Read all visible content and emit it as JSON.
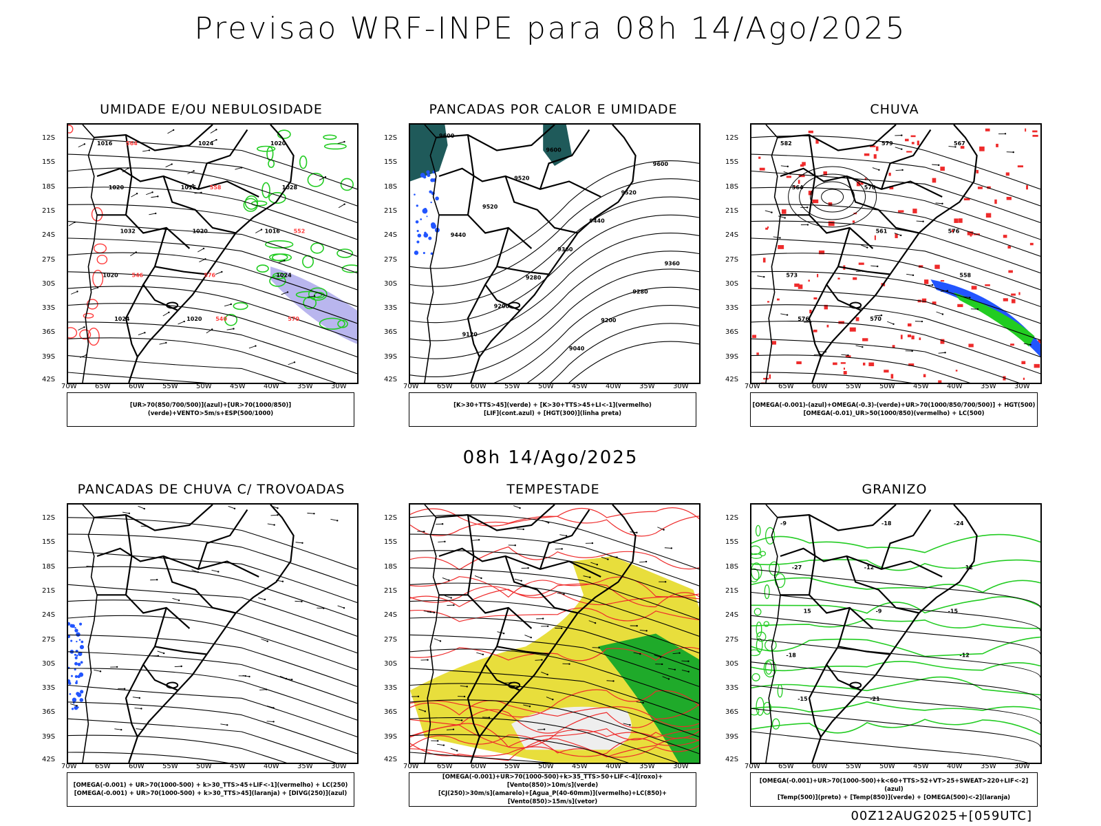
{
  "title": "Previsao WRF-INPE  para 08h 14/Ago/2025",
  "mid_title": "08h 14/Ago/2025",
  "footer": "00Z12AUG2025+[059UTC]",
  "lat_ticks": [
    "12S",
    "15S",
    "18S",
    "21S",
    "24S",
    "27S",
    "30S",
    "33S",
    "36S",
    "39S",
    "42S"
  ],
  "lon_ticks": [
    "70W",
    "65W",
    "60W",
    "55W",
    "50W",
    "45W",
    "40W",
    "35W",
    "30W"
  ],
  "panels": [
    {
      "title": "UMIDADE E/OU NEBULOSIDADE",
      "legend": [
        "[UR>70(850/700/500)](azul)+[UR>70(1000/850)](verde)+VENTO>5m/s+ESP(500/1000)"
      ],
      "contour_labels": [
        "1016",
        "1016",
        "1016",
        "1020",
        "1020",
        "1020",
        "1020",
        "1020",
        "1024",
        "1024",
        "1024",
        "1028",
        "1032",
        "576",
        "570",
        "564",
        "558",
        "552",
        "546",
        "540"
      ]
    },
    {
      "title": "PANCADAS POR CALOR E UMIDADE",
      "legend": [
        "[K>30+TTS>45](verde) + [K>30+TTS>45+LI<-1](vermelho)",
        "[LIF](cont.azul) + [HGT(300)](linha preta)"
      ],
      "contour_labels": [
        "9600",
        "9600",
        "9600",
        "9520",
        "9520",
        "9520",
        "9440",
        "9440",
        "9360",
        "9360",
        "9280",
        "9280",
        "9200",
        "9200",
        "9120",
        "9040"
      ]
    },
    {
      "title": "CHUVA",
      "legend": [
        "[OMEGA(-0.001)-(azul)+OMEGA(-0.3)-(verde)+UR>70(1000/850/700/500)] + HGT(500)",
        "[OMEGA(-0.01)_UR>50(1000/850)(vermelho) + LC(500)"
      ],
      "contour_labels": [
        "582",
        "576",
        "576",
        "573",
        "570",
        "567",
        "564",
        "561",
        "558",
        "576",
        "579"
      ]
    },
    {
      "title": "PANCADAS DE CHUVA C/ TROVOADAS",
      "legend": [
        "[OMEGA(-0.001) + UR>70(1000-500) + k>30_TTS>45+LIF<-1](vermelho) + LC(250)",
        "[OMEGA(-0.001) + UR>70(1000-500) + k>30_TTS>45](laranja) + [DIVG(250)](azul)"
      ],
      "contour_labels": []
    },
    {
      "title": "TEMPESTADE",
      "legend": [
        "[OMEGA(-0.001)+UR>70(1000-500)+k>35_TTS>50+LIF<-4](roxo)+[Vento(850)>10m/s](verde)",
        "[CJ(250)>30m/s](amarelo)+[Agua_P(40-60mm)](vermelho)+LC(850)+[Vento(850)>15m/s](vetor)"
      ],
      "contour_labels": []
    },
    {
      "title": "GRANIZO",
      "legend": [
        "[OMEGA(-0.001)+UR>70(1000-500)+k<60+TTS>52+VT>25+SWEAT>220+LIF<-2](azul)",
        "[Temp(500)](preto) + [Temp(850)](verde) + [OMEGA(500)<-2](laranja)"
      ],
      "contour_labels": [
        "-9",
        "-12",
        "-15",
        "-18",
        "-21",
        "-24",
        "-27",
        "-9",
        "-12",
        "-15",
        "-18",
        "12",
        "15"
      ]
    }
  ],
  "colors": {
    "coast": "#000000",
    "red_contour": "#ff3b3b",
    "green_contour": "#22cc22",
    "blue_area": "#2255ff",
    "lilac_area": "#b9b6ee",
    "yellow_area": "#e8de3c",
    "teal_area": "#1f5a5a",
    "red_rain": "#ee2b2b"
  }
}
